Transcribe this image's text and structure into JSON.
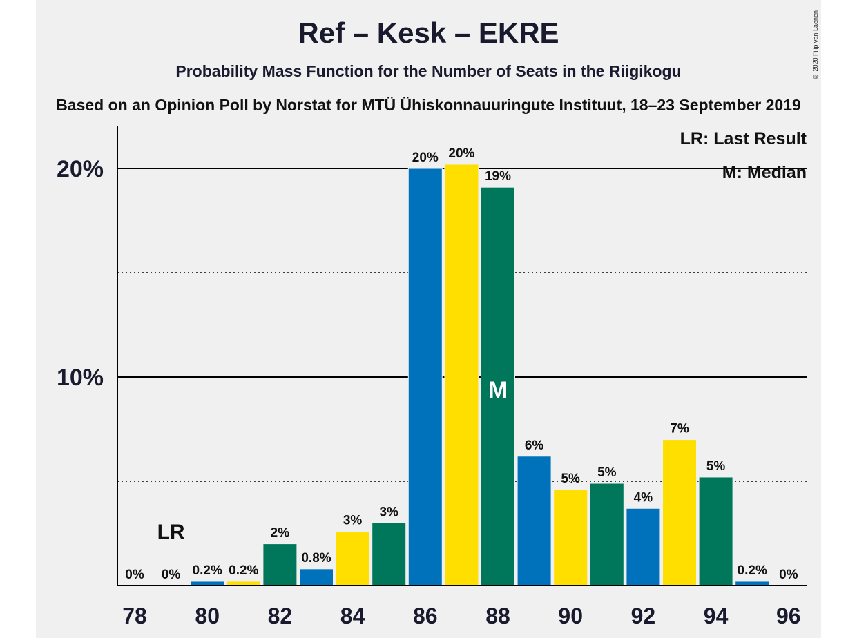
{
  "title": "Ref – Kesk – EKRE",
  "subtitle": "Probability Mass Function for the Number of Seats in the Riigikogu",
  "source": "Based on an Opinion Poll by Norstat for MTÜ Ühiskonnauuringute Instituut, 18–23 September 2019",
  "copyright": "© 2020 Filip van Laenen",
  "legend": {
    "last_result": "LR: Last Result",
    "median": "M: Median"
  },
  "markers": {
    "last_result_label": "LR",
    "median_label": "M"
  },
  "colors": {
    "blue": "#0072bb",
    "yellow": "#ffdf00",
    "green": "#00775a",
    "background": "#f0f0f0"
  },
  "chart_data": {
    "type": "bar",
    "x": [
      78,
      79,
      80,
      81,
      82,
      83,
      84,
      85,
      86,
      87,
      88,
      89,
      90,
      91,
      92,
      93,
      94,
      95,
      96
    ],
    "values": [
      0,
      0,
      0.2,
      0.2,
      2.0,
      0.8,
      2.6,
      3.0,
      20.0,
      20.2,
      19.1,
      6.2,
      4.6,
      4.9,
      3.7,
      7.0,
      5.2,
      0.2,
      0
    ],
    "labels": [
      "0%",
      "0%",
      "0.2%",
      "0.2%",
      "2%",
      "0.8%",
      "3%",
      "3%",
      "20%",
      "20%",
      "19%",
      "6%",
      "5%",
      "5%",
      "4%",
      "7%",
      "5%",
      "0.2%",
      "0%"
    ],
    "bar_colors": [
      "blue",
      "yellow",
      "blue",
      "yellow",
      "green",
      "blue",
      "yellow",
      "green",
      "blue",
      "yellow",
      "green",
      "blue",
      "yellow",
      "green",
      "blue",
      "yellow",
      "green",
      "blue",
      "yellow"
    ],
    "x_ticks": [
      "78",
      "80",
      "82",
      "84",
      "86",
      "88",
      "90",
      "92",
      "94",
      "96"
    ],
    "y_ticks": [
      "10%",
      "20%"
    ],
    "ylim": [
      0,
      22
    ],
    "last_result_seat": 79,
    "median_seat": 88,
    "grid": "solid lines at 10% and 20%, dotted lines at 5% and 15%",
    "legend_position": "top-right"
  }
}
